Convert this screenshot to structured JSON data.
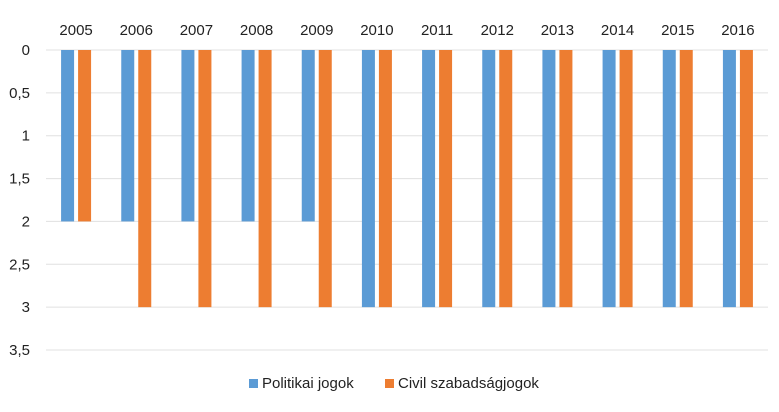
{
  "chart_data": {
    "type": "bar",
    "title": "",
    "xlabel": "",
    "ylabel": "",
    "categories": [
      "2005",
      "2006",
      "2007",
      "2008",
      "2009",
      "2010",
      "2011",
      "2012",
      "2013",
      "2014",
      "2015",
      "2016"
    ],
    "series": [
      {
        "name": "Politikai jogok",
        "color": "#5b9bd5",
        "values": [
          2,
          2,
          2,
          2,
          2,
          3,
          3,
          3,
          3,
          3,
          3,
          3
        ]
      },
      {
        "name": "Civil szabadságjogok",
        "color": "#ed7d31",
        "values": [
          2,
          3,
          3,
          3,
          3,
          3,
          3,
          3,
          3,
          3,
          3,
          3
        ]
      }
    ],
    "yaxis": {
      "min": 0,
      "max": 3.5,
      "inverted": true,
      "ticks": [
        0,
        0.5,
        1,
        1.5,
        2,
        2.5,
        3,
        3.5
      ],
      "tick_labels": [
        "0",
        "0,5",
        "1",
        "1,5",
        "2",
        "2,5",
        "3",
        "3,5"
      ]
    },
    "xaxis_position": "top",
    "grid": true,
    "grid_color": "#e0e0e0",
    "legend_position": "bottom"
  }
}
